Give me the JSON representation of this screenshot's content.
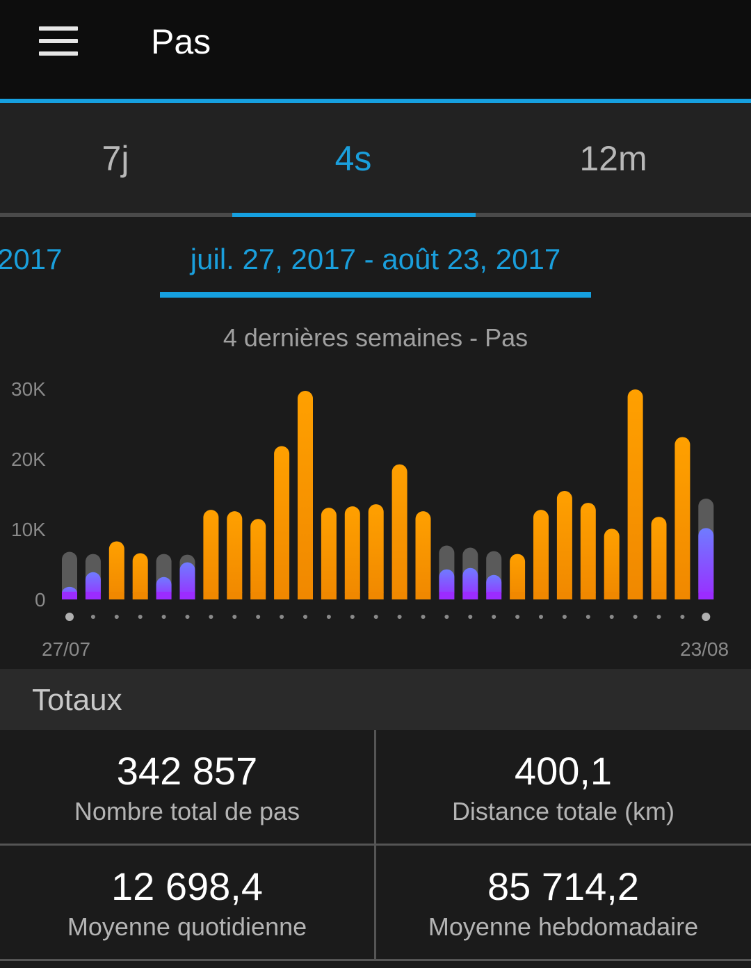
{
  "app": {
    "title": "Pas"
  },
  "tabs": [
    {
      "label": "7j",
      "active": false
    },
    {
      "label": "4s",
      "active": true
    },
    {
      "label": "12m",
      "active": false
    }
  ],
  "range": {
    "previous_label": "2017",
    "current_label": "juil. 27, 2017 - août 23, 2017"
  },
  "chart_title": "4 dernières semaines - Pas",
  "chart_data": {
    "type": "bar",
    "title": "4 dernières semaines - Pas",
    "xlabel": "",
    "ylabel": "",
    "ylim": [
      0,
      30000
    ],
    "y_ticks": [
      "0",
      "10K",
      "20K",
      "30K"
    ],
    "x_start_label": "27/07",
    "x_end_label": "23/08",
    "series": [
      {
        "name": "",
        "values": [
          1800,
          3900,
          8300,
          6600,
          3200,
          5300,
          12800,
          12600,
          11500,
          21900,
          29800,
          13100,
          13300,
          13600,
          19300,
          12600,
          4300,
          4500,
          3500,
          6500,
          12800,
          15500,
          13800,
          10100,
          30000,
          11800,
          23200,
          10200
        ]
      }
    ],
    "goal_values": [
      6800,
      6500,
      0,
      0,
      6500,
      6400,
      0,
      0,
      0,
      0,
      0,
      0,
      0,
      0,
      0,
      0,
      7700,
      7400,
      6900,
      0,
      0,
      0,
      0,
      0,
      0,
      0,
      0,
      14400
    ],
    "goal_color": "#5a5a5a",
    "over_goal_colors": [
      "#ff9c00",
      "#ee8200"
    ],
    "under_goal_colors": [
      "#9b2cff",
      "#6f7cff"
    ]
  },
  "totals": {
    "header": "Totaux",
    "items": [
      {
        "value": "342 857",
        "label": "Nombre total de pas"
      },
      {
        "value": "400,1",
        "label": "Distance totale (km)"
      },
      {
        "value": "12 698,4",
        "label": "Moyenne quotidienne"
      },
      {
        "value": "85 714,2",
        "label": "Moyenne hebdomadaire"
      }
    ]
  },
  "colors": {
    "accent": "#16a0e0",
    "background": "#1b1b1b",
    "appbar": "#0d0d0d"
  }
}
